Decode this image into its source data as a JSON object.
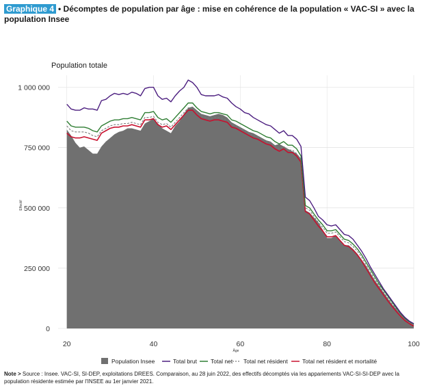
{
  "header": {
    "tag": "Graphique 4",
    "title": "• Décomptes de population par âge : mise en cohérence de la population « VAC-SI » avec la population Insee"
  },
  "note": {
    "label": "Note >",
    "text": " Source : Insee. VAC-SI, SI-DEP, exploitations DREES. Comparaison, au 28 juin 2022, des effectifs décomptés via les appariements VAC-SI-SI-DEP avec la population résidente estimée par l'INSEE au 1er janvier 2021."
  },
  "colors": {
    "insee": "#707070",
    "brut": "#4b1d7f",
    "net": "#2e7d32",
    "net_resident": "#7a7a7a",
    "mortalite": "#c8102e"
  },
  "chart_data": {
    "type": "area",
    "title": "Population totale",
    "xlabel": "Âge",
    "ylabel": "Effectif",
    "xlim": [
      18,
      100
    ],
    "ylim": [
      0,
      1050000
    ],
    "x_ticks": [
      20,
      40,
      60,
      80,
      100
    ],
    "y_ticks": [
      0,
      250000,
      500000,
      750000,
      1000000
    ],
    "y_tick_labels": [
      "0",
      "250 000",
      "500 000",
      "750 000",
      "1 000 000"
    ],
    "x": [
      20,
      21,
      22,
      23,
      24,
      25,
      26,
      27,
      28,
      29,
      30,
      31,
      32,
      33,
      34,
      35,
      36,
      37,
      38,
      39,
      40,
      41,
      42,
      43,
      44,
      45,
      46,
      47,
      48,
      49,
      50,
      51,
      52,
      53,
      54,
      55,
      56,
      57,
      58,
      59,
      60,
      61,
      62,
      63,
      64,
      65,
      66,
      67,
      68,
      69,
      70,
      71,
      72,
      73,
      74,
      75,
      76,
      77,
      78,
      79,
      80,
      81,
      82,
      83,
      84,
      85,
      86,
      87,
      88,
      89,
      90,
      91,
      92,
      93,
      94,
      95,
      96,
      97,
      98,
      99,
      100
    ],
    "series": [
      {
        "name": "Population Insee",
        "type": "area",
        "values": [
          825000,
          800000,
          770000,
          750000,
          755000,
          740000,
          725000,
          725000,
          755000,
          775000,
          790000,
          805000,
          815000,
          820000,
          830000,
          830000,
          825000,
          820000,
          850000,
          860000,
          870000,
          850000,
          830000,
          820000,
          810000,
          840000,
          860000,
          890000,
          915000,
          920000,
          905000,
          890000,
          885000,
          880000,
          885000,
          890000,
          885000,
          875000,
          855000,
          845000,
          835000,
          825000,
          815000,
          810000,
          800000,
          790000,
          780000,
          775000,
          760000,
          765000,
          755000,
          745000,
          735000,
          725000,
          705000,
          490000,
          480000,
          460000,
          440000,
          410000,
          375000,
          375000,
          385000,
          365000,
          345000,
          345000,
          330000,
          310000,
          285000,
          260000,
          230000,
          200000,
          175000,
          150000,
          125000,
          100000,
          80000,
          60000,
          40000,
          25000,
          15000
        ]
      },
      {
        "name": "Total brut",
        "type": "line",
        "values": [
          930000,
          910000,
          905000,
          905000,
          915000,
          910000,
          910000,
          905000,
          945000,
          950000,
          965000,
          975000,
          970000,
          975000,
          970000,
          980000,
          975000,
          965000,
          995000,
          1000000,
          1000000,
          965000,
          950000,
          955000,
          940000,
          965000,
          985000,
          1000000,
          1030000,
          1020000,
          1000000,
          970000,
          965000,
          965000,
          965000,
          970000,
          960000,
          955000,
          935000,
          920000,
          910000,
          895000,
          890000,
          875000,
          865000,
          855000,
          845000,
          840000,
          825000,
          810000,
          820000,
          800000,
          800000,
          785000,
          755000,
          545000,
          530000,
          500000,
          465000,
          450000,
          430000,
          425000,
          430000,
          410000,
          390000,
          385000,
          370000,
          345000,
          320000,
          290000,
          255000,
          225000,
          195000,
          165000,
          140000,
          115000,
          90000,
          65000,
          45000,
          30000,
          20000
        ]
      },
      {
        "name": "Total net",
        "type": "line",
        "values": [
          860000,
          840000,
          835000,
          835000,
          835000,
          830000,
          820000,
          815000,
          840000,
          850000,
          860000,
          865000,
          865000,
          870000,
          870000,
          875000,
          870000,
          865000,
          895000,
          895000,
          900000,
          875000,
          865000,
          870000,
          855000,
          875000,
          895000,
          915000,
          935000,
          935000,
          915000,
          900000,
          895000,
          890000,
          895000,
          895000,
          890000,
          885000,
          865000,
          860000,
          850000,
          840000,
          830000,
          820000,
          815000,
          805000,
          795000,
          790000,
          775000,
          765000,
          775000,
          760000,
          760000,
          745000,
          715000,
          510000,
          500000,
          475000,
          450000,
          430000,
          405000,
          405000,
          410000,
          390000,
          370000,
          365000,
          350000,
          330000,
          305000,
          275000,
          245000,
          215000,
          185000,
          160000,
          135000,
          110000,
          85000,
          62000,
          42000,
          28000,
          18000
        ]
      },
      {
        "name": "Total net résident",
        "type": "line",
        "values": [
          840000,
          820000,
          815000,
          815000,
          815000,
          810000,
          800000,
          795000,
          820000,
          830000,
          840000,
          845000,
          845000,
          850000,
          850000,
          855000,
          850000,
          845000,
          875000,
          875000,
          880000,
          855000,
          845000,
          850000,
          835000,
          855000,
          875000,
          895000,
          915000,
          915000,
          895000,
          880000,
          875000,
          870000,
          875000,
          875000,
          870000,
          865000,
          845000,
          840000,
          830000,
          820000,
          810000,
          800000,
          795000,
          785000,
          775000,
          770000,
          755000,
          745000,
          755000,
          740000,
          740000,
          725000,
          700000,
          500000,
          490000,
          465000,
          440000,
          420000,
          395000,
          395000,
          400000,
          380000,
          360000,
          355000,
          340000,
          320000,
          295000,
          265000,
          235000,
          205000,
          178000,
          152000,
          128000,
          103000,
          80000,
          58000,
          39000,
          25000,
          16000
        ]
      },
      {
        "name": "Total net résident et mortalité",
        "type": "line",
        "values": [
          810000,
          795000,
          790000,
          790000,
          795000,
          790000,
          785000,
          780000,
          810000,
          820000,
          830000,
          835000,
          835000,
          840000,
          840000,
          845000,
          840000,
          835000,
          865000,
          865000,
          870000,
          845000,
          835000,
          840000,
          825000,
          845000,
          865000,
          885000,
          905000,
          905000,
          885000,
          870000,
          865000,
          860000,
          865000,
          865000,
          860000,
          855000,
          835000,
          830000,
          820000,
          810000,
          800000,
          790000,
          785000,
          775000,
          765000,
          760000,
          745000,
          735000,
          745000,
          730000,
          730000,
          715000,
          690000,
          485000,
          475000,
          450000,
          425000,
          405000,
          380000,
          380000,
          385000,
          365000,
          345000,
          340000,
          325000,
          305000,
          280000,
          250000,
          220000,
          190000,
          165000,
          140000,
          115000,
          92000,
          70000,
          50000,
          32000,
          20000,
          10000
        ]
      }
    ]
  }
}
